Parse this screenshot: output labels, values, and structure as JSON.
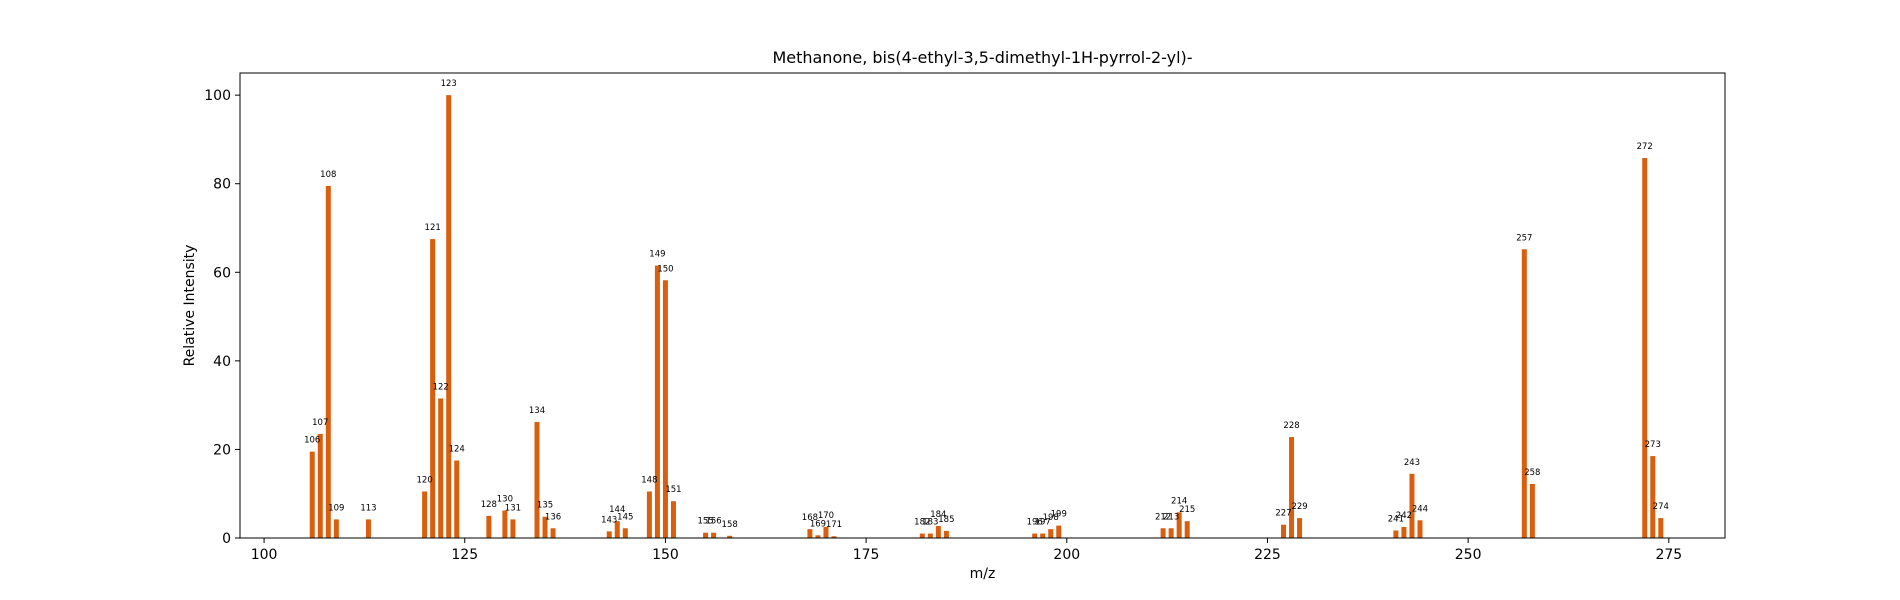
{
  "chart_data": {
    "type": "bar",
    "title": "Methanone, bis(4-ethyl-3,5-dimethyl-1H-pyrrol-2-yl)-",
    "xlabel": "m/z",
    "ylabel": "Relative Intensity",
    "xlim": [
      97,
      282
    ],
    "ylim": [
      0,
      105
    ],
    "xticks": [
      100,
      125,
      150,
      175,
      200,
      225,
      250,
      275
    ],
    "yticks": [
      0,
      20,
      40,
      60,
      80,
      100
    ],
    "grid": false,
    "bar_color": "#d95f0e",
    "x": [
      106,
      107,
      108,
      109,
      113,
      120,
      121,
      122,
      123,
      124,
      128,
      130,
      131,
      134,
      135,
      136,
      143,
      144,
      145,
      148,
      149,
      150,
      151,
      155,
      156,
      158,
      168,
      169,
      170,
      171,
      182,
      183,
      184,
      185,
      196,
      197,
      198,
      199,
      212,
      213,
      214,
      215,
      227,
      228,
      229,
      241,
      242,
      243,
      244,
      257,
      258,
      272,
      273,
      274
    ],
    "values": [
      19.5,
      23.5,
      79.5,
      4.2,
      4.2,
      10.5,
      67.5,
      31.5,
      100,
      17.5,
      5,
      6.2,
      4.2,
      26.2,
      4.8,
      2.2,
      1.5,
      3.8,
      2.2,
      10.5,
      61.5,
      58.2,
      8.3,
      1.2,
      1.2,
      0.5,
      2,
      0.6,
      2.5,
      0.4,
      1,
      1,
      2.7,
      1.6,
      1,
      1,
      2,
      2.8,
      2.2,
      2.2,
      5.8,
      3.8,
      3,
      22.8,
      4.5,
      1.7,
      2.5,
      14.5,
      4,
      65.2,
      12.2,
      85.8,
      18.5,
      4.5
    ],
    "labels": [
      "106",
      "107",
      "108",
      "109",
      "113",
      "120",
      "121",
      "122",
      "123",
      "124",
      "128",
      "130",
      "131",
      "134",
      "135",
      "136",
      "143",
      "144",
      "145",
      "148",
      "149",
      "150",
      "151",
      "155",
      "156",
      "158",
      "168",
      "169",
      "170",
      "171",
      "182",
      "183",
      "184",
      "185",
      "196",
      "197",
      "198",
      "199",
      "212",
      "213",
      "214",
      "215",
      "227",
      "228",
      "229",
      "241",
      "242",
      "243",
      "244",
      "257",
      "258",
      "272",
      "273",
      "274"
    ]
  }
}
